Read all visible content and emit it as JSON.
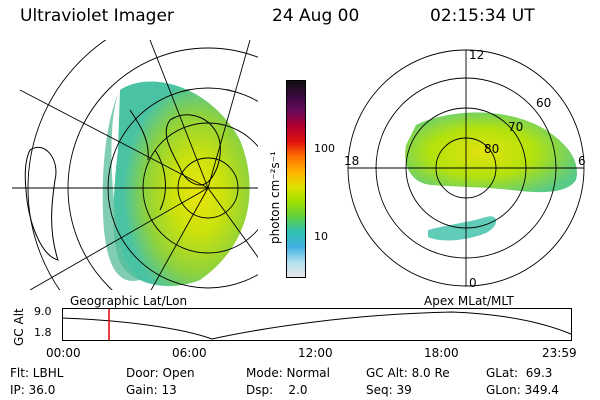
{
  "header": {
    "title": "Ultraviolet Imager",
    "date": "24 Aug 00",
    "time": "02:15:34 UT"
  },
  "colorbar": {
    "unit_label": "photon cm⁻²s⁻¹",
    "ticks": [
      "100",
      "10"
    ],
    "colors": [
      "#101010",
      "#3a0a40",
      "#6a0a5a",
      "#b00030",
      "#e01010",
      "#ff7000",
      "#ffb000",
      "#e0e000",
      "#a0e000",
      "#60d040",
      "#30c0b0",
      "#40b0e0",
      "#b0e0f0",
      "#e8e8e8"
    ]
  },
  "left_panel": {
    "caption": "Geographic Lat/Lon"
  },
  "right_panel": {
    "caption": "Apex MLat/MLT",
    "mlt_labels": [
      "12",
      "18",
      "6",
      "0"
    ],
    "lat_labels": [
      "60",
      "70",
      "80"
    ]
  },
  "timeline": {
    "ylabel": "GC Alt",
    "yticks": [
      "9.0",
      "1.8"
    ],
    "xticks": [
      "00:00",
      "06:00",
      "12:00",
      "18:00",
      "23:59"
    ],
    "marker_time": "02:15"
  },
  "info": {
    "flt": "Flt: LBHL",
    "ip": "IP: 36.0",
    "door": "Door: Open",
    "gain": "Gain: 13",
    "mode": "Mode: Normal",
    "dsp": "Dsp:    2.0",
    "gcalt": "GC Alt: 8.0 Re",
    "seq": "Seq: 39",
    "glat": "GLat:  69.3",
    "glon": "GLon: 349.4"
  }
}
